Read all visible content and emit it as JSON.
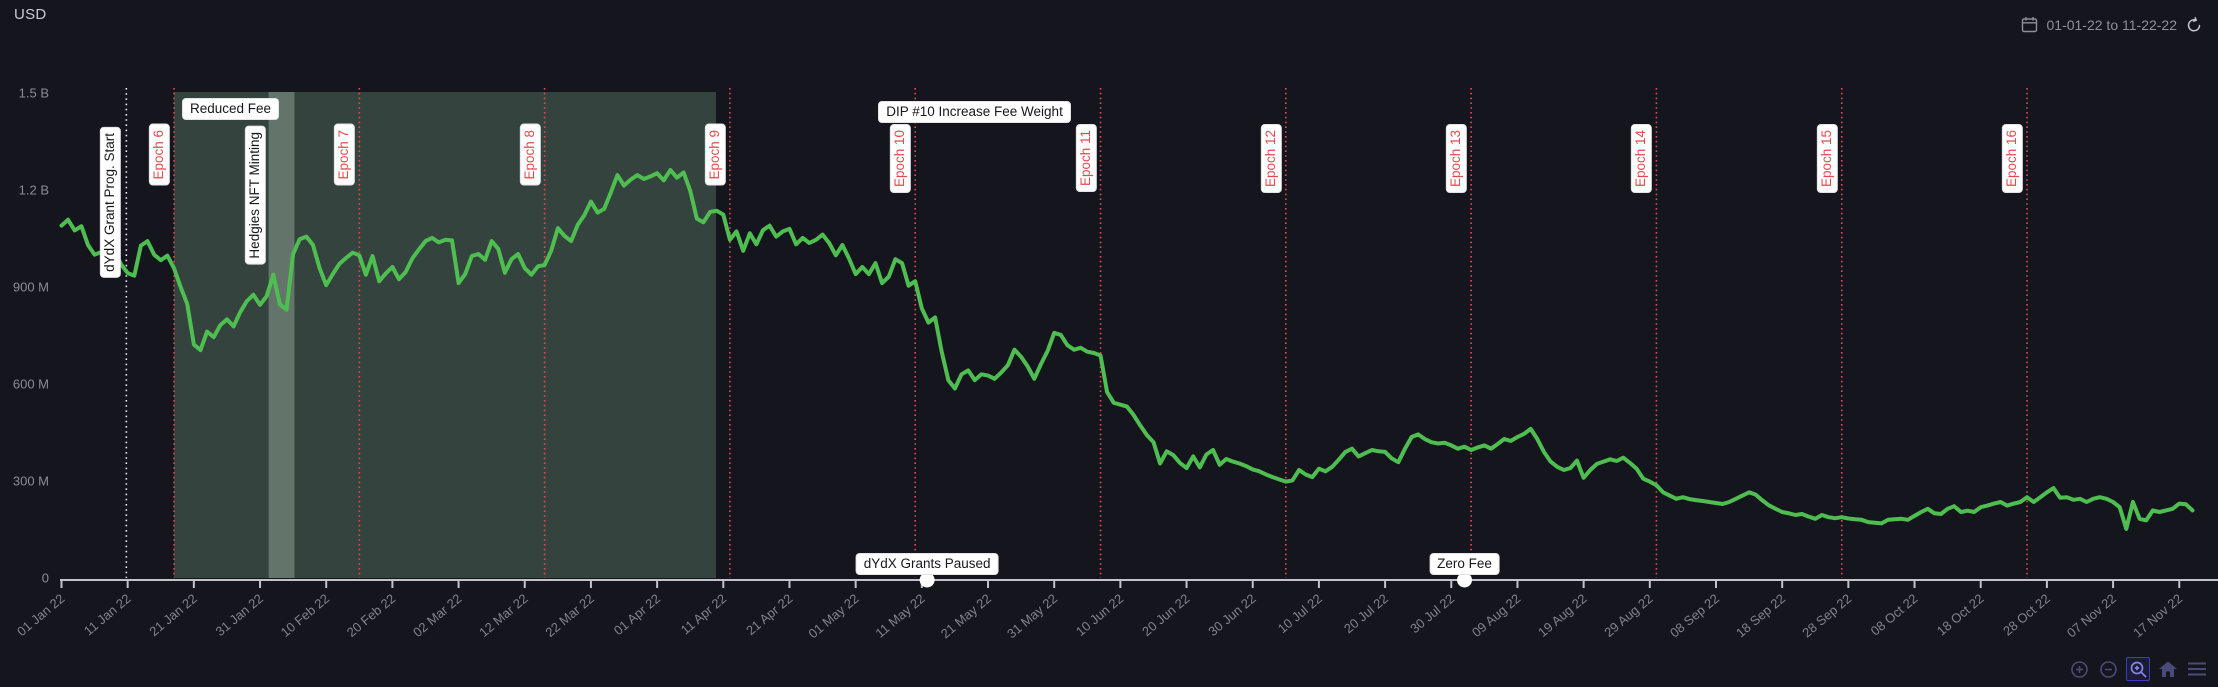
{
  "header": {
    "currency_label": "USD",
    "date_range": "01-01-22 to 11-22-22"
  },
  "toolbar": {
    "items": [
      "zoom-in",
      "zoom-out",
      "box-zoom",
      "home",
      "menu"
    ],
    "active_item": "box-zoom"
  },
  "chart_data": {
    "type": "line",
    "unit": "USD",
    "x_unit": "days since 01 Jan 2022",
    "ylim": [
      0,
      1500000000
    ],
    "xlim_days": [
      0,
      326
    ],
    "grid": false,
    "line_color": "#4fbe51",
    "epoch_line_color": "#e5484d",
    "event_line_color": "#e9e9f0",
    "axis_color": "#c2c2c8",
    "tick_label_color": "#82828c",
    "region_color": "rgba(130,175,138,0.30)",
    "region_overlap_color": "rgba(195,220,200,0.32)",
    "y_ticks": [
      {
        "value": 1500,
        "label": "1.5 B"
      },
      {
        "value": 1200,
        "label": "1.2 B"
      },
      {
        "value": 900,
        "label": "900 M"
      },
      {
        "value": 600,
        "label": "600 M"
      },
      {
        "value": 300,
        "label": "300 M"
      },
      {
        "value": 0,
        "label": "0"
      }
    ],
    "x_ticks": [
      {
        "day": 0,
        "label": "01 Jan 22"
      },
      {
        "day": 10,
        "label": "11 Jan 22"
      },
      {
        "day": 20,
        "label": "21 Jan 22"
      },
      {
        "day": 30,
        "label": "31 Jan 22"
      },
      {
        "day": 40,
        "label": "10 Feb 22"
      },
      {
        "day": 50,
        "label": "20 Feb 22"
      },
      {
        "day": 60,
        "label": "02 Mar 22"
      },
      {
        "day": 70,
        "label": "12 Mar 22"
      },
      {
        "day": 80,
        "label": "22 Mar 22"
      },
      {
        "day": 90,
        "label": "01 Apr 22"
      },
      {
        "day": 100,
        "label": "11 Apr 22"
      },
      {
        "day": 110,
        "label": "21 Apr 22"
      },
      {
        "day": 120,
        "label": "01 May 22"
      },
      {
        "day": 130,
        "label": "11 May 22"
      },
      {
        "day": 140,
        "label": "21 May 22"
      },
      {
        "day": 150,
        "label": "31 May 22"
      },
      {
        "day": 160,
        "label": "10 Jun 22"
      },
      {
        "day": 170,
        "label": "20 Jun 22"
      },
      {
        "day": 180,
        "label": "30 Jun 22"
      },
      {
        "day": 190,
        "label": "10 Jul 22"
      },
      {
        "day": 200,
        "label": "20 Jul 22"
      },
      {
        "day": 210,
        "label": "30 Jul 22"
      },
      {
        "day": 220,
        "label": "09 Aug 22"
      },
      {
        "day": 230,
        "label": "19 Aug 22"
      },
      {
        "day": 240,
        "label": "29 Aug 22"
      },
      {
        "day": 250,
        "label": "08 Sep 22"
      },
      {
        "day": 260,
        "label": "18 Sep 22"
      },
      {
        "day": 270,
        "label": "28 Sep 22"
      },
      {
        "day": 280,
        "label": "08 Oct 22"
      },
      {
        "day": 290,
        "label": "18 Oct 22"
      },
      {
        "day": 300,
        "label": "28 Oct 22"
      },
      {
        "day": 310,
        "label": "07 Nov 22"
      },
      {
        "day": 320,
        "label": "17 Nov 22"
      }
    ],
    "epochs": [
      {
        "label": "Epoch 6",
        "day": 17
      },
      {
        "label": "Epoch 7",
        "day": 45
      },
      {
        "label": "Epoch 8",
        "day": 73
      },
      {
        "label": "Epoch 9",
        "day": 101
      },
      {
        "label": "Epoch 10",
        "day": 129
      },
      {
        "label": "Epoch 11",
        "day": 157
      },
      {
        "label": "Epoch 12",
        "day": 185
      },
      {
        "label": "Epoch 13",
        "day": 213
      },
      {
        "label": "Epoch 14",
        "day": 241
      },
      {
        "label": "Epoch 15",
        "day": 269
      },
      {
        "label": "Epoch 16",
        "day": 297
      }
    ],
    "regions": [
      {
        "id": "reduced-fee-period",
        "from_day": 17,
        "to_day": 98.9
      },
      {
        "id": "hedgies-minting-period",
        "from_day": 31.3,
        "to_day": 35.2
      }
    ],
    "annotations": [
      {
        "id": "grant-start",
        "text": "dYdX Grant Prog. Start",
        "orientation": "vertical",
        "day": 9.8,
        "line": "white-dotted"
      },
      {
        "id": "reduced-fee",
        "text": "Reduced Fee",
        "orientation": "horizontal",
        "day": 17
      },
      {
        "id": "hedgies",
        "text": "Hedgies NFT Minting",
        "orientation": "vertical",
        "day": 29.5
      },
      {
        "id": "dip10",
        "text": "DIP #10 Increase Fee Weight",
        "orientation": "horizontal",
        "day": 129
      },
      {
        "id": "grants-paused",
        "text": "dYdX Grants Paused",
        "orientation": "horizontal",
        "day": 130.8,
        "marker": "dot-on-axis"
      },
      {
        "id": "zero-fee",
        "text": "Zero Fee",
        "orientation": "horizontal",
        "day": 212,
        "marker": "dot-on-axis"
      }
    ],
    "series_units": "millions USD",
    "series": [
      [
        0,
        1090
      ],
      [
        1,
        1108
      ],
      [
        2,
        1075
      ],
      [
        3,
        1088
      ],
      [
        4,
        1030
      ],
      [
        5,
        1000
      ],
      [
        6,
        1008
      ],
      [
        7,
        988
      ],
      [
        8,
        1012
      ],
      [
        9,
        970
      ],
      [
        10,
        943
      ],
      [
        11,
        935
      ],
      [
        12,
        1028
      ],
      [
        13,
        1042
      ],
      [
        14,
        1000
      ],
      [
        15,
        983
      ],
      [
        16,
        997
      ],
      [
        17,
        958
      ],
      [
        18,
        900
      ],
      [
        19,
        848
      ],
      [
        20,
        722
      ],
      [
        21,
        705
      ],
      [
        22,
        762
      ],
      [
        23,
        745
      ],
      [
        24,
        782
      ],
      [
        25,
        800
      ],
      [
        26,
        778
      ],
      [
        27,
        822
      ],
      [
        28,
        856
      ],
      [
        29,
        876
      ],
      [
        30,
        845
      ],
      [
        31,
        872
      ],
      [
        32,
        938
      ],
      [
        33,
        846
      ],
      [
        34,
        830
      ],
      [
        35,
        1002
      ],
      [
        36,
        1048
      ],
      [
        37,
        1056
      ],
      [
        38,
        1030
      ],
      [
        39,
        958
      ],
      [
        40,
        906
      ],
      [
        41,
        940
      ],
      [
        42,
        972
      ],
      [
        43,
        990
      ],
      [
        44,
        1006
      ],
      [
        45,
        998
      ],
      [
        46,
        938
      ],
      [
        47,
        996
      ],
      [
        48,
        918
      ],
      [
        49,
        942
      ],
      [
        50,
        962
      ],
      [
        51,
        924
      ],
      [
        52,
        946
      ],
      [
        53,
        988
      ],
      [
        54,
        1016
      ],
      [
        55,
        1042
      ],
      [
        56,
        1052
      ],
      [
        57,
        1038
      ],
      [
        58,
        1046
      ],
      [
        59,
        1044
      ],
      [
        60,
        912
      ],
      [
        61,
        940
      ],
      [
        62,
        996
      ],
      [
        63,
        1002
      ],
      [
        64,
        984
      ],
      [
        65,
        1042
      ],
      [
        66,
        1018
      ],
      [
        67,
        944
      ],
      [
        68,
        986
      ],
      [
        69,
        1002
      ],
      [
        70,
        958
      ],
      [
        71,
        938
      ],
      [
        72,
        964
      ],
      [
        73,
        968
      ],
      [
        74,
        1012
      ],
      [
        75,
        1082
      ],
      [
        76,
        1058
      ],
      [
        77,
        1042
      ],
      [
        78,
        1092
      ],
      [
        79,
        1122
      ],
      [
        80,
        1164
      ],
      [
        81,
        1130
      ],
      [
        82,
        1142
      ],
      [
        83,
        1192
      ],
      [
        84,
        1246
      ],
      [
        85,
        1214
      ],
      [
        86,
        1232
      ],
      [
        87,
        1246
      ],
      [
        88,
        1234
      ],
      [
        89,
        1242
      ],
      [
        90,
        1252
      ],
      [
        91,
        1230
      ],
      [
        92,
        1262
      ],
      [
        93,
        1238
      ],
      [
        94,
        1254
      ],
      [
        95,
        1198
      ],
      [
        96,
        1112
      ],
      [
        97,
        1100
      ],
      [
        98,
        1132
      ],
      [
        99,
        1136
      ],
      [
        100,
        1124
      ],
      [
        101,
        1046
      ],
      [
        102,
        1072
      ],
      [
        103,
        1012
      ],
      [
        104,
        1066
      ],
      [
        105,
        1032
      ],
      [
        106,
        1076
      ],
      [
        107,
        1090
      ],
      [
        108,
        1056
      ],
      [
        109,
        1072
      ],
      [
        110,
        1080
      ],
      [
        111,
        1032
      ],
      [
        112,
        1052
      ],
      [
        113,
        1036
      ],
      [
        114,
        1046
      ],
      [
        115,
        1062
      ],
      [
        116,
        1036
      ],
      [
        117,
        998
      ],
      [
        118,
        1030
      ],
      [
        119,
        988
      ],
      [
        120,
        940
      ],
      [
        121,
        962
      ],
      [
        122,
        940
      ],
      [
        123,
        974
      ],
      [
        124,
        912
      ],
      [
        125,
        932
      ],
      [
        126,
        986
      ],
      [
        127,
        974
      ],
      [
        128,
        904
      ],
      [
        129,
        918
      ],
      [
        130,
        834
      ],
      [
        131,
        790
      ],
      [
        132,
        806
      ],
      [
        133,
        700
      ],
      [
        134,
        612
      ],
      [
        135,
        586
      ],
      [
        136,
        630
      ],
      [
        137,
        642
      ],
      [
        138,
        612
      ],
      [
        139,
        630
      ],
      [
        140,
        626
      ],
      [
        141,
        616
      ],
      [
        142,
        636
      ],
      [
        143,
        658
      ],
      [
        144,
        706
      ],
      [
        145,
        684
      ],
      [
        146,
        654
      ],
      [
        147,
        616
      ],
      [
        148,
        662
      ],
      [
        149,
        702
      ],
      [
        150,
        758
      ],
      [
        151,
        752
      ],
      [
        152,
        720
      ],
      [
        153,
        706
      ],
      [
        154,
        712
      ],
      [
        155,
        700
      ],
      [
        156,
        696
      ],
      [
        157,
        688
      ],
      [
        158,
        575
      ],
      [
        159,
        542
      ],
      [
        160,
        536
      ],
      [
        161,
        530
      ],
      [
        162,
        504
      ],
      [
        163,
        472
      ],
      [
        164,
        442
      ],
      [
        165,
        420
      ],
      [
        166,
        354
      ],
      [
        167,
        392
      ],
      [
        168,
        380
      ],
      [
        169,
        356
      ],
      [
        170,
        340
      ],
      [
        171,
        376
      ],
      [
        172,
        342
      ],
      [
        173,
        382
      ],
      [
        174,
        396
      ],
      [
        175,
        350
      ],
      [
        176,
        368
      ],
      [
        177,
        360
      ],
      [
        178,
        354
      ],
      [
        179,
        346
      ],
      [
        180,
        336
      ],
      [
        181,
        330
      ],
      [
        182,
        320
      ],
      [
        183,
        312
      ],
      [
        184,
        305
      ],
      [
        185,
        298
      ],
      [
        186,
        302
      ],
      [
        187,
        334
      ],
      [
        188,
        320
      ],
      [
        189,
        312
      ],
      [
        190,
        338
      ],
      [
        191,
        330
      ],
      [
        192,
        344
      ],
      [
        193,
        366
      ],
      [
        194,
        390
      ],
      [
        195,
        400
      ],
      [
        196,
        376
      ],
      [
        197,
        386
      ],
      [
        198,
        396
      ],
      [
        199,
        392
      ],
      [
        200,
        390
      ],
      [
        201,
        370
      ],
      [
        202,
        358
      ],
      [
        203,
        400
      ],
      [
        204,
        436
      ],
      [
        205,
        444
      ],
      [
        206,
        430
      ],
      [
        207,
        420
      ],
      [
        208,
        416
      ],
      [
        209,
        418
      ],
      [
        210,
        410
      ],
      [
        211,
        400
      ],
      [
        212,
        406
      ],
      [
        213,
        396
      ],
      [
        214,
        404
      ],
      [
        215,
        410
      ],
      [
        216,
        400
      ],
      [
        217,
        414
      ],
      [
        218,
        430
      ],
      [
        219,
        424
      ],
      [
        220,
        436
      ],
      [
        221,
        446
      ],
      [
        222,
        461
      ],
      [
        223,
        430
      ],
      [
        224,
        390
      ],
      [
        225,
        360
      ],
      [
        226,
        344
      ],
      [
        227,
        334
      ],
      [
        228,
        340
      ],
      [
        229,
        363
      ],
      [
        230,
        310
      ],
      [
        231,
        334
      ],
      [
        232,
        353
      ],
      [
        233,
        360
      ],
      [
        234,
        367
      ],
      [
        235,
        362
      ],
      [
        236,
        372
      ],
      [
        237,
        356
      ],
      [
        238,
        338
      ],
      [
        239,
        307
      ],
      [
        240,
        298
      ],
      [
        241,
        287
      ],
      [
        242,
        265
      ],
      [
        243,
        255
      ],
      [
        244,
        245
      ],
      [
        245,
        250
      ],
      [
        246,
        244
      ],
      [
        247,
        241
      ],
      [
        248,
        238
      ],
      [
        249,
        235
      ],
      [
        250,
        232
      ],
      [
        251,
        229
      ],
      [
        252,
        235
      ],
      [
        253,
        245
      ],
      [
        254,
        255
      ],
      [
        255,
        265
      ],
      [
        256,
        258
      ],
      [
        257,
        240
      ],
      [
        258,
        225
      ],
      [
        259,
        214
      ],
      [
        260,
        204
      ],
      [
        261,
        200
      ],
      [
        262,
        195
      ],
      [
        263,
        198
      ],
      [
        264,
        190
      ],
      [
        265,
        183
      ],
      [
        266,
        195
      ],
      [
        267,
        188
      ],
      [
        268,
        185
      ],
      [
        269,
        188
      ],
      [
        270,
        184
      ],
      [
        271,
        182
      ],
      [
        272,
        180
      ],
      [
        273,
        173
      ],
      [
        274,
        171
      ],
      [
        275,
        169
      ],
      [
        276,
        180
      ],
      [
        277,
        182
      ],
      [
        278,
        183
      ],
      [
        279,
        180
      ],
      [
        280,
        192
      ],
      [
        281,
        204
      ],
      [
        282,
        214
      ],
      [
        283,
        200
      ],
      [
        284,
        198
      ],
      [
        285,
        214
      ],
      [
        286,
        222
      ],
      [
        287,
        204
      ],
      [
        288,
        208
      ],
      [
        289,
        204
      ],
      [
        290,
        219
      ],
      [
        291,
        224
      ],
      [
        292,
        230
      ],
      [
        293,
        235
      ],
      [
        294,
        224
      ],
      [
        295,
        230
      ],
      [
        296,
        235
      ],
      [
        297,
        250
      ],
      [
        298,
        235
      ],
      [
        299,
        250
      ],
      [
        300,
        265
      ],
      [
        301,
        278
      ],
      [
        302,
        248
      ],
      [
        303,
        250
      ],
      [
        304,
        242
      ],
      [
        305,
        245
      ],
      [
        306,
        235
      ],
      [
        307,
        245
      ],
      [
        308,
        250
      ],
      [
        309,
        245
      ],
      [
        310,
        235
      ],
      [
        311,
        219
      ],
      [
        312,
        152
      ],
      [
        313,
        235
      ],
      [
        314,
        183
      ],
      [
        315,
        178
      ],
      [
        316,
        209
      ],
      [
        317,
        204
      ],
      [
        318,
        209
      ],
      [
        319,
        214
      ],
      [
        320,
        230
      ],
      [
        321,
        228
      ],
      [
        322,
        209
      ]
    ]
  }
}
